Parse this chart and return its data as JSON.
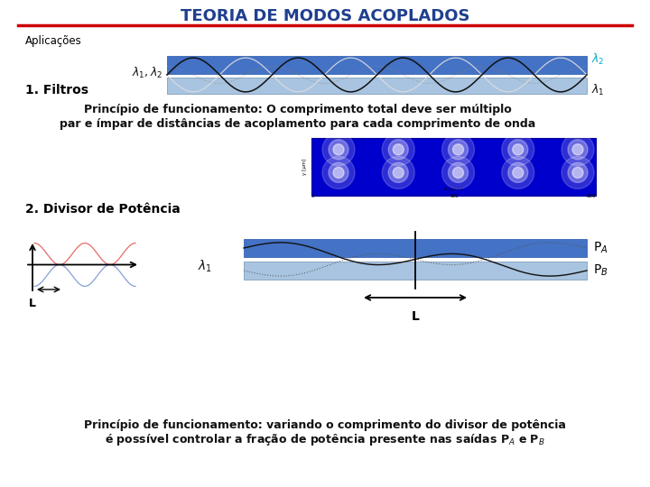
{
  "title": "TEORIA DE MODOS ACOPLADOS",
  "title_color": "#1F3F8F",
  "title_fontsize": 13,
  "bg_color": "#FFFFFF",
  "subtitle1": "Aplicações",
  "section1": "1. Filtros",
  "section2": "2. Divisor de Potência",
  "text1_line1": "Princípio de funcionamento: O comprimento total deve ser múltiplo",
  "text1_line2": "par e ímpar de distâncias de acoplamento para cada comprimento de onda",
  "text2_line1": "Princípio de funcionamento: variando o comprimento do divisor de potência",
  "text2_line2": "é possível controlar a fração de potência presente nas saídas P",
  "waveguide_blue_dark": "#4472C4",
  "waveguide_blue_mid": "#6A95CC",
  "waveguide_blue_light": "#A8C4E0",
  "waveguide_gray": "#C0C8D0",
  "red_line_color": "#CC0000",
  "lambda2_color": "#00AACC"
}
